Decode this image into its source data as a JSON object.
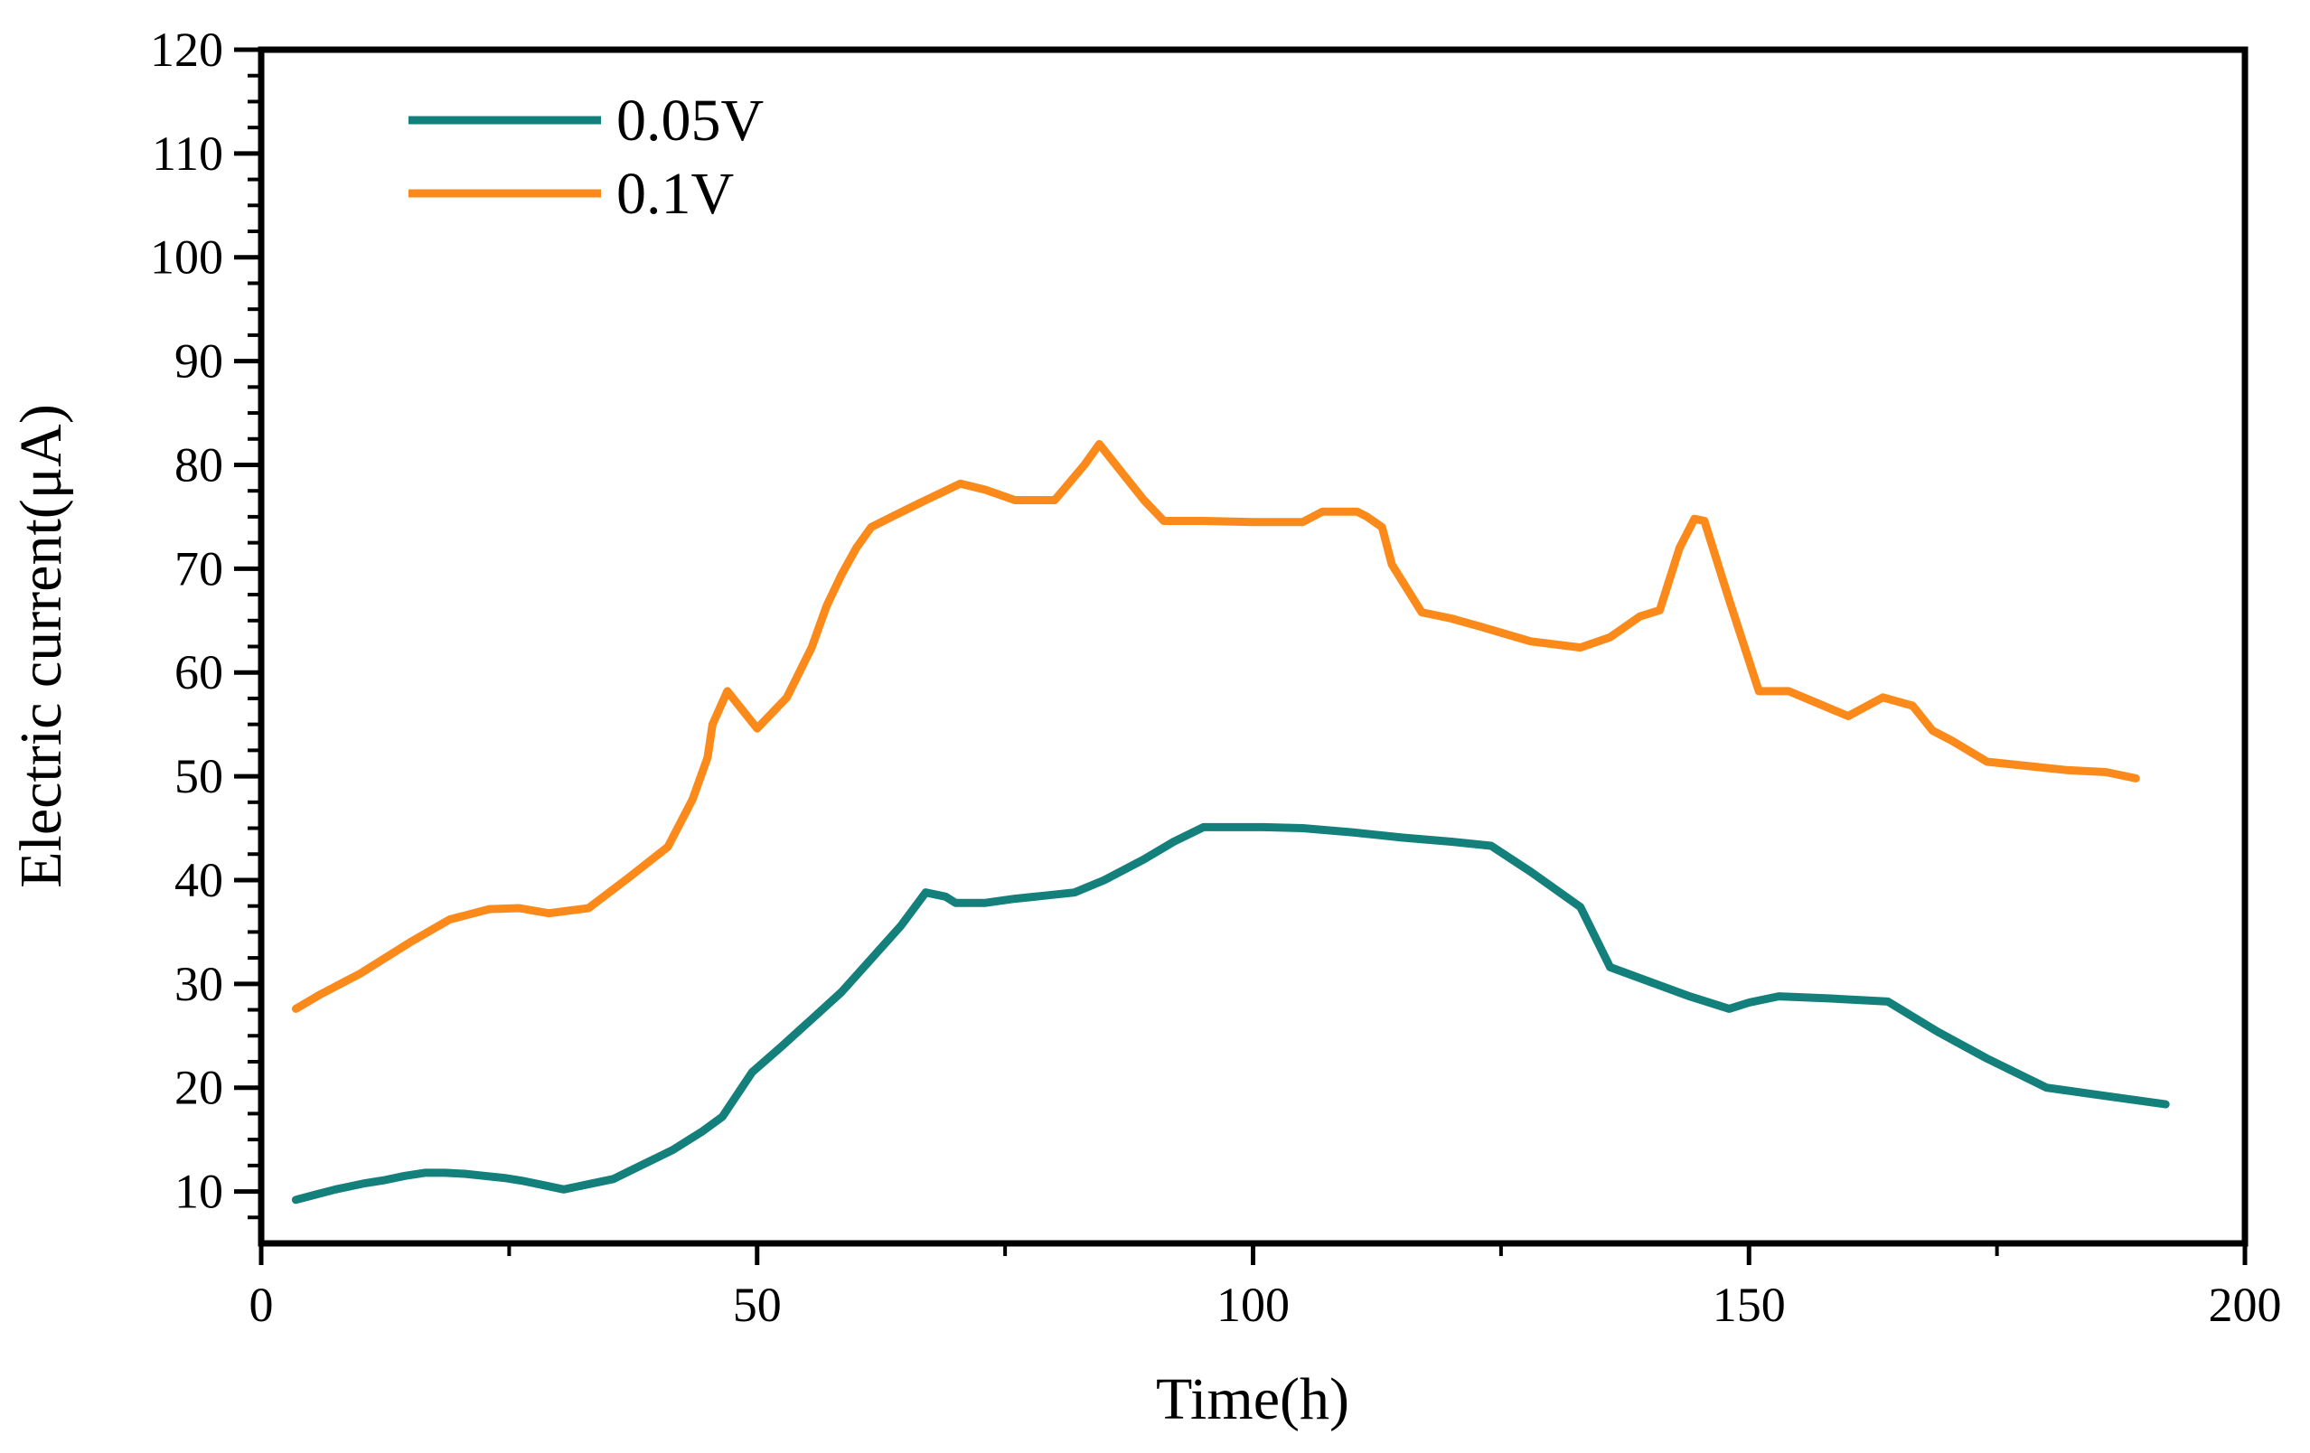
{
  "chart_data": {
    "type": "line",
    "title": "",
    "xlabel": "Time(h)",
    "ylabel": "Electric current(μA)",
    "xlim": [
      0,
      200
    ],
    "ylim": [
      5,
      120
    ],
    "xticks": [
      0,
      50,
      100,
      150,
      200
    ],
    "yticks": [
      10,
      20,
      30,
      40,
      50,
      60,
      70,
      80,
      90,
      100,
      110,
      120
    ],
    "legend_position": "top-left",
    "series": [
      {
        "name": "0.05V",
        "color": "#13807c",
        "x": [
          3.5,
          5.5,
          7.5,
          8.5,
          10.5,
          12.5,
          14.5,
          16.5,
          18.5,
          20.5,
          22.5,
          24.5,
          26.5,
          28.5,
          30.5,
          32.5,
          35.5,
          38.5,
          41.5,
          44.5,
          46.5,
          49.5,
          52.5,
          55.5,
          58.5,
          61.5,
          64.5,
          67,
          69,
          70,
          73,
          76,
          79,
          82,
          85,
          89,
          92,
          95,
          98,
          101,
          105,
          110,
          115,
          120,
          124,
          128,
          133,
          136,
          140,
          144,
          148,
          150,
          153,
          158,
          164,
          169,
          174,
          180,
          186,
          192
        ],
        "y": [
          9.2,
          9.7,
          10.2,
          10.4,
          10.8,
          11.1,
          11.5,
          11.8,
          11.8,
          11.7,
          11.5,
          11.3,
          11.0,
          10.6,
          10.2,
          10.6,
          11.2,
          12.6,
          14.0,
          15.8,
          17.2,
          21.5,
          24.0,
          26.6,
          29.2,
          32.4,
          35.6,
          38.8,
          38.4,
          37.8,
          37.8,
          38.2,
          38.5,
          38.8,
          40.0,
          42.0,
          43.7,
          45.1,
          45.1,
          45.1,
          45.0,
          44.6,
          44.1,
          43.7,
          43.3,
          40.8,
          37.4,
          31.6,
          30.2,
          28.8,
          27.6,
          28.2,
          28.8,
          28.6,
          28.3,
          25.4,
          22.8,
          20.0,
          19.2,
          18.4
        ]
      },
      {
        "name": "0.1V",
        "color": "#fb8a1b",
        "x": [
          3.5,
          6,
          10,
          15,
          19,
          23,
          26,
          29,
          33,
          37,
          41,
          43.5,
          45,
          45.5,
          47,
          50,
          53,
          55.5,
          57,
          58.5,
          60,
          61.5,
          64,
          67,
          70.5,
          73,
          76,
          80,
          83,
          84.5,
          87,
          89,
          91,
          95,
          100,
          105,
          107,
          110.5,
          111.5,
          113,
          114,
          117,
          120,
          123,
          128,
          133,
          136,
          139,
          141,
          143,
          144.5,
          145.5,
          148,
          151,
          154,
          157,
          160,
          163.5,
          166.5,
          168.5,
          170.5,
          174,
          178,
          182,
          186,
          189
        ],
        "y": [
          27.6,
          29.0,
          31.0,
          34.0,
          36.2,
          37.2,
          37.3,
          36.8,
          37.3,
          40.2,
          43.2,
          47.8,
          51.8,
          55.0,
          58.2,
          54.6,
          57.6,
          62.4,
          66.4,
          69.4,
          72.0,
          74.0,
          75.2,
          76.6,
          78.2,
          77.6,
          76.6,
          76.6,
          80.0,
          82.0,
          79.0,
          76.6,
          74.6,
          74.6,
          74.5,
          74.5,
          75.5,
          75.5,
          75.0,
          74.0,
          70.4,
          65.8,
          65.2,
          64.4,
          63.0,
          62.4,
          63.4,
          65.4,
          66.0,
          72.0,
          74.8,
          74.6,
          67.0,
          58.2,
          58.2,
          57.0,
          55.8,
          57.6,
          56.8,
          54.4,
          53.4,
          51.4,
          51.0,
          50.6,
          50.4,
          49.8
        ]
      }
    ]
  }
}
